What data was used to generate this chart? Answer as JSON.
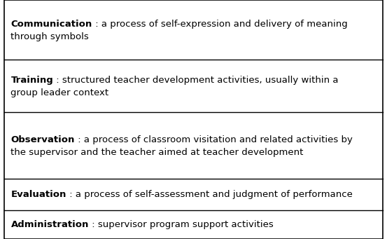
{
  "rows": [
    {
      "bold": "Communication",
      "text": " : a process of self-expression and delivery of meaning\nthrough symbols"
    },
    {
      "bold": "Training",
      "text": " : structured teacher development activities, usually within a\ngroup leader context"
    },
    {
      "bold": "Observation",
      "text": " : a process of classroom visitation and related activities by\nthe supervisor and the teacher aimed at teacher development"
    },
    {
      "bold": "Evaluation",
      "text": " : a process of self-assessment and judgment of performance"
    },
    {
      "bold": "Administration",
      "text": " : supervisor program support activities"
    }
  ],
  "background_color": "#ffffff",
  "border_color": "#000000",
  "text_color": "#000000",
  "font_size": 9.5,
  "fig_width": 5.53,
  "fig_height": 3.41,
  "dpi": 100
}
